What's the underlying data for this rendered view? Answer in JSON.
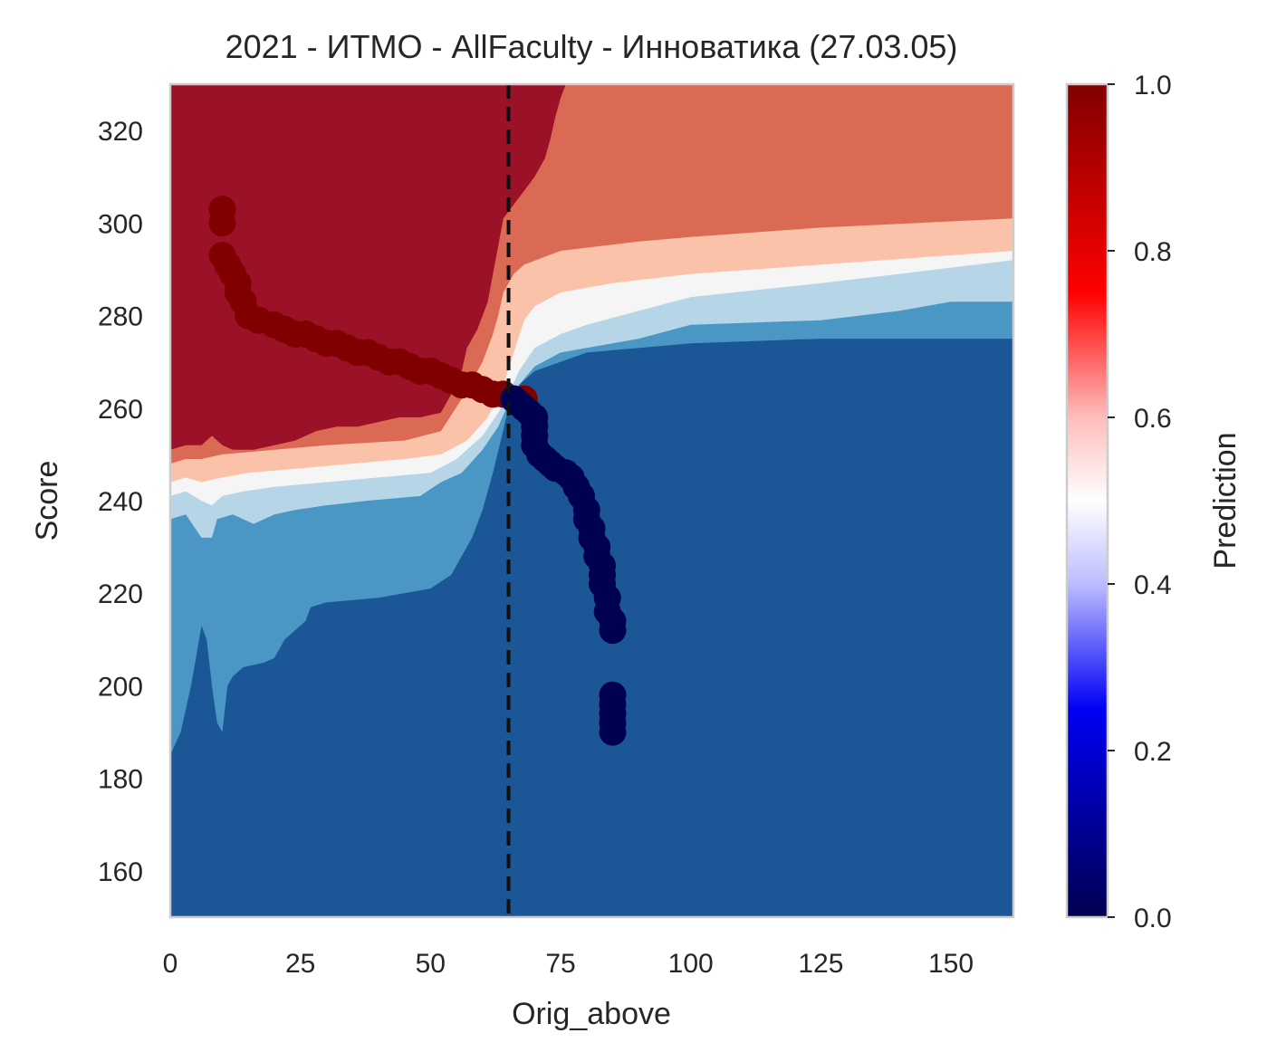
{
  "chart_data": {
    "type": "heatmap",
    "title": "2021 - ИТМО - AllFaculty - Инноватика (27.03.05)",
    "xlabel": "Orig_above",
    "ylabel": "Score",
    "xlim": [
      0,
      162
    ],
    "ylim": [
      150,
      330
    ],
    "x_ticks": [
      "0",
      "25",
      "50",
      "75",
      "100",
      "125",
      "150"
    ],
    "y_ticks": [
      "160",
      "180",
      "200",
      "220",
      "240",
      "260",
      "280",
      "300",
      "320"
    ],
    "x_tick_values": [
      0,
      25,
      50,
      75,
      100,
      125,
      150
    ],
    "y_tick_values": [
      160,
      180,
      200,
      220,
      240,
      260,
      280,
      300,
      320
    ],
    "grid": false,
    "vline": {
      "x": 65,
      "style": "dashed",
      "color": "#111111"
    },
    "colorbar": {
      "label": "Prediction",
      "range": [
        0,
        1
      ],
      "ticks": [
        "0.0",
        "0.2",
        "0.4",
        "0.6",
        "0.8",
        "1.0"
      ],
      "tick_values": [
        0,
        0.2,
        0.4,
        0.6,
        0.8,
        1.0
      ],
      "colormap": "seismic"
    },
    "contour_levels": [
      {
        "level": "0.0-0.125",
        "color": "#1b5696"
      },
      {
        "level": "0.125-0.25",
        "color": "#4a97c6"
      },
      {
        "level": "0.25-0.375",
        "color": "#b6d6e8"
      },
      {
        "level": "0.375-0.5",
        "color": "#f5f5f5"
      },
      {
        "level": "0.5-0.625",
        "color": "#f9c2a9"
      },
      {
        "level": "0.625-0.75",
        "color": "#db6a55"
      },
      {
        "level": "0.75-1.0",
        "color": "#9b1128"
      }
    ],
    "boundaries": {
      "b1": [
        [
          0,
          185
        ],
        [
          2,
          190
        ],
        [
          4,
          200
        ],
        [
          6,
          213
        ],
        [
          7,
          210
        ],
        [
          8,
          200
        ],
        [
          9,
          192
        ],
        [
          10,
          190
        ],
        [
          11,
          200
        ],
        [
          12,
          202
        ],
        [
          14,
          204
        ],
        [
          18,
          205
        ],
        [
          20,
          206
        ],
        [
          22,
          210
        ],
        [
          24,
          212
        ],
        [
          26,
          214
        ],
        [
          27,
          217
        ],
        [
          30,
          218
        ],
        [
          40,
          219
        ],
        [
          50,
          221
        ],
        [
          54,
          224
        ],
        [
          58,
          232
        ],
        [
          60,
          238
        ],
        [
          62,
          246
        ],
        [
          63.5,
          253
        ],
        [
          65,
          260
        ],
        [
          66,
          264
        ],
        [
          70,
          268
        ],
        [
          80,
          272
        ],
        [
          100,
          274
        ],
        [
          125,
          275
        ],
        [
          162,
          275
        ]
      ],
      "b2": [
        [
          0,
          236
        ],
        [
          3,
          237
        ],
        [
          6,
          232
        ],
        [
          8,
          232
        ],
        [
          9,
          236
        ],
        [
          12,
          237
        ],
        [
          16,
          235
        ],
        [
          20,
          237
        ],
        [
          24,
          238
        ],
        [
          30,
          239
        ],
        [
          38,
          240
        ],
        [
          48,
          241
        ],
        [
          52,
          244
        ],
        [
          56,
          246
        ],
        [
          60,
          251
        ],
        [
          63,
          256
        ],
        [
          65,
          261
        ],
        [
          67,
          265
        ],
        [
          70,
          269
        ],
        [
          75,
          272
        ],
        [
          90,
          275
        ],
        [
          100,
          278
        ],
        [
          125,
          279
        ],
        [
          140,
          281
        ],
        [
          150,
          283
        ],
        [
          162,
          283
        ]
      ],
      "b3": [
        [
          0,
          241
        ],
        [
          3,
          242
        ],
        [
          6,
          240
        ],
        [
          8,
          239
        ],
        [
          10,
          241
        ],
        [
          14,
          242
        ],
        [
          20,
          243
        ],
        [
          30,
          244
        ],
        [
          40,
          245
        ],
        [
          50,
          246
        ],
        [
          55,
          249
        ],
        [
          60,
          254
        ],
        [
          63,
          259
        ],
        [
          65,
          263
        ],
        [
          67,
          268
        ],
        [
          70,
          273
        ],
        [
          75,
          276
        ],
        [
          80,
          278
        ],
        [
          90,
          281
        ],
        [
          100,
          284
        ],
        [
          125,
          287
        ],
        [
          140,
          289
        ],
        [
          162,
          292
        ]
      ],
      "b4": [
        [
          0,
          244
        ],
        [
          3,
          245
        ],
        [
          6,
          244
        ],
        [
          10,
          245
        ],
        [
          15,
          246
        ],
        [
          25,
          247
        ],
        [
          35,
          248
        ],
        [
          45,
          249
        ],
        [
          52,
          250
        ],
        [
          57,
          253
        ],
        [
          61,
          258
        ],
        [
          64,
          265
        ],
        [
          66,
          272
        ],
        [
          68,
          279
        ],
        [
          70,
          282
        ],
        [
          75,
          285
        ],
        [
          85,
          287
        ],
        [
          100,
          289
        ],
        [
          125,
          291
        ],
        [
          162,
          294
        ]
      ],
      "b5": [
        [
          0,
          248
        ],
        [
          3,
          249
        ],
        [
          6,
          249
        ],
        [
          10,
          250
        ],
        [
          20,
          251
        ],
        [
          30,
          252
        ],
        [
          45,
          253
        ],
        [
          52,
          255
        ],
        [
          56,
          262
        ],
        [
          60,
          270
        ],
        [
          62,
          276
        ],
        [
          63,
          280
        ],
        [
          64,
          285
        ],
        [
          66,
          289
        ],
        [
          68,
          291
        ],
        [
          75,
          294
        ],
        [
          90,
          296
        ],
        [
          100,
          297
        ],
        [
          125,
          299
        ],
        [
          162,
          301
        ]
      ],
      "b6": [
        [
          0,
          251
        ],
        [
          3,
          252
        ],
        [
          6,
          252
        ],
        [
          8,
          254
        ],
        [
          10,
          252
        ],
        [
          12,
          251
        ],
        [
          16,
          251
        ],
        [
          20,
          252
        ],
        [
          24,
          253
        ],
        [
          28,
          255
        ],
        [
          32,
          256
        ],
        [
          36,
          256
        ],
        [
          40,
          257
        ],
        [
          44,
          258
        ],
        [
          48,
          258
        ],
        [
          52,
          259
        ],
        [
          54,
          263
        ],
        [
          56,
          268
        ],
        [
          57,
          273
        ],
        [
          59,
          277
        ],
        [
          61,
          283
        ],
        [
          62,
          289
        ],
        [
          63,
          295
        ],
        [
          64,
          301
        ],
        [
          66,
          304
        ],
        [
          68,
          307
        ],
        [
          70,
          310
        ],
        [
          72,
          314
        ],
        [
          73,
          318
        ],
        [
          74,
          323
        ],
        [
          75,
          327
        ],
        [
          76,
          330
        ]
      ]
    },
    "series": [
      {
        "name": "",
        "color": "#800000",
        "points": [
          [
            10,
            303
          ],
          [
            10,
            300
          ],
          [
            10,
            293
          ],
          [
            11,
            291
          ],
          [
            12,
            289
          ],
          [
            13,
            287
          ],
          [
            13,
            285
          ],
          [
            14,
            283
          ],
          [
            15,
            280
          ],
          [
            17,
            279
          ],
          [
            20,
            278
          ],
          [
            22,
            277
          ],
          [
            24,
            276
          ],
          [
            26,
            276
          ],
          [
            28,
            275
          ],
          [
            30,
            274
          ],
          [
            32,
            274
          ],
          [
            34,
            273
          ],
          [
            36,
            272
          ],
          [
            38,
            272
          ],
          [
            40,
            271
          ],
          [
            42,
            270
          ],
          [
            44,
            270
          ],
          [
            46,
            269
          ],
          [
            48,
            268
          ],
          [
            50,
            268
          ],
          [
            52,
            267
          ],
          [
            54,
            266
          ],
          [
            56,
            265
          ],
          [
            58,
            265
          ],
          [
            60,
            264
          ],
          [
            62,
            263
          ],
          [
            64,
            263
          ],
          [
            66,
            262
          ],
          [
            68,
            262
          ]
        ]
      },
      {
        "name": "",
        "color": "#000050",
        "points": [
          [
            66,
            262
          ],
          [
            67,
            261
          ],
          [
            68,
            260
          ],
          [
            69,
            259
          ],
          [
            70,
            258
          ],
          [
            70,
            256
          ],
          [
            70,
            254
          ],
          [
            70,
            252
          ],
          [
            71,
            250
          ],
          [
            72,
            249
          ],
          [
            73,
            248
          ],
          [
            74,
            247
          ],
          [
            76,
            246
          ],
          [
            77,
            245
          ],
          [
            78,
            243
          ],
          [
            79,
            241
          ],
          [
            80,
            238
          ],
          [
            80,
            236
          ],
          [
            81,
            234
          ],
          [
            81,
            232
          ],
          [
            82,
            230
          ],
          [
            82,
            228
          ],
          [
            83,
            226
          ],
          [
            83,
            224
          ],
          [
            83,
            222
          ],
          [
            84,
            219
          ],
          [
            84,
            216
          ],
          [
            85,
            214
          ],
          [
            85,
            212
          ],
          [
            85,
            198
          ],
          [
            85,
            196
          ],
          [
            85,
            194
          ],
          [
            85,
            192
          ],
          [
            85,
            190
          ]
        ]
      }
    ]
  }
}
